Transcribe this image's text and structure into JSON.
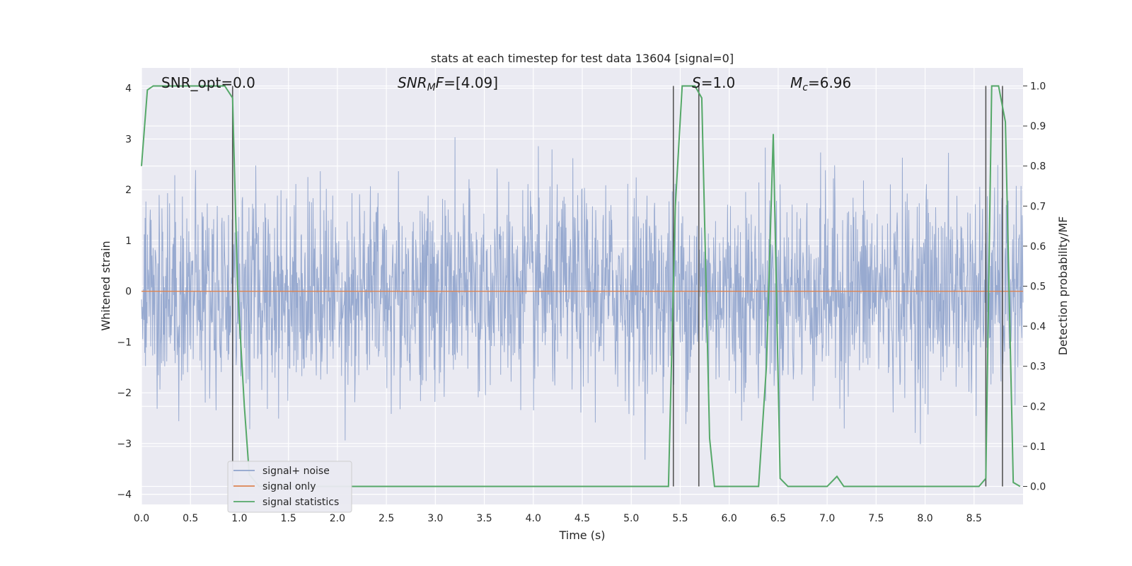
{
  "chart_data": {
    "type": "line",
    "title": "stats at each timestep for test data 13604 [signal=0]",
    "xlabel": "Time (s)",
    "ylabel_left": "Whitened strain",
    "ylabel_right": "Detection probability/MF",
    "xlim": [
      0.0,
      9.0
    ],
    "ylim_left": [
      -4.2,
      4.4
    ],
    "ylim_right": [
      -0.045,
      1.045
    ],
    "x_ticks": [
      "0.0",
      "0.5",
      "1.0",
      "1.5",
      "2.0",
      "2.5",
      "3.0",
      "3.5",
      "4.0",
      "4.5",
      "5.0",
      "5.5",
      "6.0",
      "6.5",
      "7.0",
      "7.5",
      "8.0",
      "8.5"
    ],
    "y_left_ticks": [
      "4",
      "3",
      "2",
      "1",
      "0",
      "−1",
      "−2",
      "−3",
      "−4"
    ],
    "y_right_ticks": [
      "1.0",
      "0.9",
      "0.8",
      "0.7",
      "0.6",
      "0.5",
      "0.4",
      "0.3",
      "0.2",
      "0.1",
      "0.0"
    ],
    "grid": true,
    "annotations": [
      {
        "id": "snr-opt",
        "text": "SNR_opt=0.0"
      },
      {
        "id": "snr-mf",
        "text": "SNR_MF=[4.09]"
      },
      {
        "id": "s-val",
        "text": "S=1.0"
      },
      {
        "id": "mc-val",
        "text": "M_c=6.96"
      }
    ],
    "legend": {
      "placement": "lower-left",
      "entries": [
        "signal+ noise",
        "signal only",
        "signal statistics"
      ]
    },
    "colors": {
      "noise": "#8fa3cc",
      "signal_only": "#dd8452",
      "statistics": "#55a868",
      "vlines": "#555555",
      "bg": "#eaeaf2",
      "grid": "#ffffff"
    },
    "series": [
      {
        "name": "signal+ noise",
        "axis": "left",
        "description_amplitude_std": 1.0
      },
      {
        "name": "signal only",
        "axis": "left",
        "x": [
          0.0,
          9.0
        ],
        "y": [
          0.0,
          0.0
        ]
      },
      {
        "name": "signal statistics",
        "axis": "right",
        "x": [
          0.0,
          0.06,
          0.12,
          0.3,
          0.6,
          0.85,
          0.93,
          0.98,
          1.05,
          1.1,
          1.2,
          1.5,
          2.0,
          3.0,
          4.0,
          5.0,
          5.38,
          5.45,
          5.52,
          5.6,
          5.65,
          5.72,
          5.8,
          5.85,
          6.0,
          6.3,
          6.38,
          6.45,
          6.52,
          6.6,
          7.0,
          7.1,
          7.17,
          7.3,
          8.0,
          8.55,
          8.62,
          8.68,
          8.75,
          8.82,
          8.9,
          8.97
        ],
        "y": [
          0.8,
          0.99,
          1.0,
          1.0,
          1.0,
          1.0,
          0.97,
          0.5,
          0.2,
          0.03,
          0.0,
          0.0,
          0.0,
          0.0,
          0.0,
          0.0,
          0.0,
          0.7,
          1.0,
          1.0,
          1.0,
          0.97,
          0.12,
          0.0,
          0.0,
          0.0,
          0.3,
          0.88,
          0.02,
          0.0,
          0.0,
          0.025,
          0.0,
          0.0,
          0.0,
          0.0,
          0.02,
          1.0,
          1.0,
          0.91,
          0.01,
          0.0
        ]
      }
    ],
    "vertical_lines_x": [
      0.93,
      5.43,
      5.69,
      8.62,
      8.79
    ]
  }
}
